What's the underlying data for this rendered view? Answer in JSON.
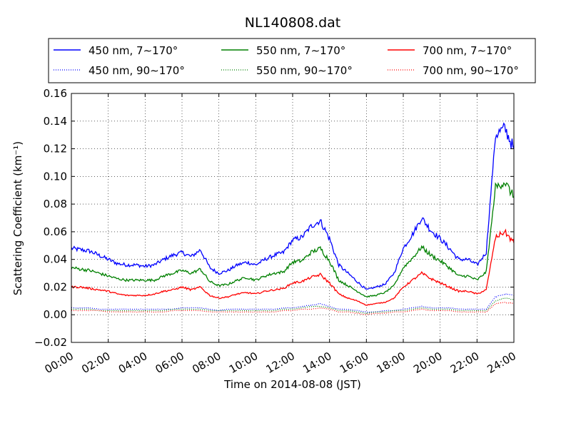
{
  "chart_data": {
    "type": "line",
    "title": "NL140808.dat",
    "xlabel": "Time on 2014-08-08 (JST)",
    "ylabel": "Scattering Coefficient (km⁻¹)",
    "x_unit": "hours",
    "xlim": [
      0,
      24
    ],
    "ylim": [
      -0.02,
      0.16
    ],
    "x_ticks": [
      "00:00",
      "02:00",
      "04:00",
      "06:00",
      "08:00",
      "10:00",
      "12:00",
      "14:00",
      "16:00",
      "18:00",
      "20:00",
      "22:00",
      "24:00"
    ],
    "y_ticks": [
      "−0.02",
      "0.00",
      "0.02",
      "0.04",
      "0.06",
      "0.08",
      "0.10",
      "0.12",
      "0.14",
      "0.16"
    ],
    "grid": true,
    "legend_position": "top",
    "x": [
      0,
      0.5,
      1,
      1.5,
      2,
      2.5,
      3,
      3.5,
      4,
      4.5,
      5,
      5.5,
      6,
      6.5,
      7,
      7.5,
      8,
      8.5,
      9,
      9.5,
      10,
      10.5,
      11,
      11.5,
      12,
      12.5,
      13,
      13.5,
      14,
      14.5,
      15,
      15.5,
      16,
      16.5,
      17,
      17.5,
      18,
      18.5,
      19,
      19.5,
      20,
      20.5,
      21,
      21.5,
      22,
      22.5,
      23,
      23.5,
      24
    ],
    "series": [
      {
        "name": "450 nm, 7∼170°",
        "color": "#0000ff",
        "style": "solid",
        "values": [
          0.048,
          0.047,
          0.046,
          0.043,
          0.04,
          0.037,
          0.036,
          0.036,
          0.035,
          0.036,
          0.04,
          0.043,
          0.045,
          0.042,
          0.047,
          0.034,
          0.03,
          0.032,
          0.036,
          0.038,
          0.036,
          0.04,
          0.043,
          0.045,
          0.054,
          0.056,
          0.064,
          0.068,
          0.055,
          0.036,
          0.03,
          0.024,
          0.018,
          0.02,
          0.022,
          0.03,
          0.048,
          0.058,
          0.07,
          0.061,
          0.055,
          0.048,
          0.04,
          0.04,
          0.036,
          0.045,
          0.13,
          0.135,
          0.12
        ]
      },
      {
        "name": "450 nm, 90∼170°",
        "color": "#0000ff",
        "style": "dotted",
        "values": [
          0.005,
          0.005,
          0.005,
          0.004,
          0.004,
          0.004,
          0.004,
          0.004,
          0.004,
          0.004,
          0.004,
          0.004,
          0.005,
          0.005,
          0.005,
          0.004,
          0.003,
          0.004,
          0.004,
          0.004,
          0.004,
          0.004,
          0.004,
          0.005,
          0.005,
          0.006,
          0.007,
          0.008,
          0.006,
          0.004,
          0.004,
          0.003,
          0.002,
          0.002,
          0.003,
          0.003,
          0.004,
          0.005,
          0.006,
          0.005,
          0.005,
          0.005,
          0.004,
          0.004,
          0.004,
          0.004,
          0.013,
          0.015,
          0.014
        ]
      },
      {
        "name": "550 nm, 7∼170°",
        "color": "#008000",
        "style": "solid",
        "values": [
          0.034,
          0.033,
          0.032,
          0.03,
          0.028,
          0.026,
          0.025,
          0.025,
          0.025,
          0.025,
          0.028,
          0.03,
          0.032,
          0.03,
          0.033,
          0.024,
          0.021,
          0.022,
          0.025,
          0.027,
          0.025,
          0.028,
          0.03,
          0.031,
          0.038,
          0.039,
          0.045,
          0.048,
          0.039,
          0.025,
          0.021,
          0.017,
          0.013,
          0.014,
          0.016,
          0.021,
          0.034,
          0.041,
          0.049,
          0.043,
          0.039,
          0.034,
          0.028,
          0.028,
          0.025,
          0.031,
          0.092,
          0.096,
          0.085
        ]
      },
      {
        "name": "550 nm, 90∼170°",
        "color": "#008000",
        "style": "dotted",
        "values": [
          0.004,
          0.004,
          0.004,
          0.003,
          0.003,
          0.003,
          0.003,
          0.003,
          0.003,
          0.003,
          0.003,
          0.004,
          0.004,
          0.004,
          0.004,
          0.003,
          0.003,
          0.003,
          0.003,
          0.003,
          0.003,
          0.003,
          0.003,
          0.004,
          0.004,
          0.005,
          0.006,
          0.006,
          0.005,
          0.003,
          0.003,
          0.002,
          0.001,
          0.002,
          0.002,
          0.003,
          0.003,
          0.004,
          0.005,
          0.004,
          0.004,
          0.004,
          0.003,
          0.003,
          0.003,
          0.003,
          0.01,
          0.012,
          0.011
        ]
      },
      {
        "name": "700 nm, 7∼170°",
        "color": "#ff0000",
        "style": "solid",
        "values": [
          0.02,
          0.02,
          0.019,
          0.018,
          0.017,
          0.015,
          0.014,
          0.014,
          0.014,
          0.015,
          0.017,
          0.018,
          0.02,
          0.018,
          0.02,
          0.014,
          0.012,
          0.013,
          0.015,
          0.016,
          0.015,
          0.017,
          0.018,
          0.019,
          0.023,
          0.024,
          0.027,
          0.029,
          0.023,
          0.015,
          0.012,
          0.01,
          0.007,
          0.008,
          0.009,
          0.012,
          0.02,
          0.025,
          0.03,
          0.026,
          0.023,
          0.02,
          0.017,
          0.017,
          0.015,
          0.018,
          0.056,
          0.06,
          0.052
        ]
      },
      {
        "name": "700 nm, 90∼170°",
        "color": "#ff0000",
        "style": "dotted",
        "values": [
          0.003,
          0.003,
          0.003,
          0.003,
          0.002,
          0.002,
          0.002,
          0.002,
          0.002,
          0.002,
          0.002,
          0.003,
          0.003,
          0.003,
          0.003,
          0.002,
          0.002,
          0.002,
          0.002,
          0.002,
          0.002,
          0.002,
          0.002,
          0.003,
          0.003,
          0.004,
          0.004,
          0.005,
          0.004,
          0.002,
          0.002,
          0.001,
          0.0,
          0.001,
          0.001,
          0.002,
          0.002,
          0.003,
          0.004,
          0.003,
          0.003,
          0.003,
          0.002,
          0.002,
          0.002,
          0.002,
          0.008,
          0.009,
          0.008
        ]
      }
    ]
  }
}
